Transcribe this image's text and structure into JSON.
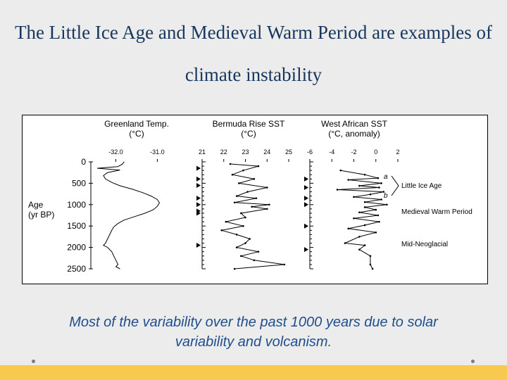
{
  "slide": {
    "title": "The Little Ice Age and Medieval Warm Period are examples of climate instability",
    "caption": "Most of the variability over the past 1000 years due to solar variability and volcanism."
  },
  "chart_data": {
    "type": "line",
    "y_axis": {
      "label_line1": "Age",
      "label_line2": "(yr BP)",
      "ticks": [
        0,
        500,
        1000,
        1500,
        2000,
        2500
      ],
      "range": [
        0,
        2500
      ]
    },
    "panels": [
      {
        "id": "greenland",
        "title_line1": "Greenland Temp.",
        "title_line2": "(°C)",
        "xlim": [
          -32.4,
          -30.6
        ],
        "ticks": [
          -32.0,
          -31.0
        ],
        "tick_labels": [
          "-32.0",
          "-31.0"
        ],
        "points": [
          [
            -31.8,
            0
          ],
          [
            -31.85,
            60
          ],
          [
            -31.95,
            110
          ],
          [
            -32.45,
            150
          ],
          [
            -31.9,
            190
          ],
          [
            -32.2,
            250
          ],
          [
            -32.3,
            320
          ],
          [
            -32.25,
            400
          ],
          [
            -32.1,
            480
          ],
          [
            -31.9,
            560
          ],
          [
            -31.6,
            640
          ],
          [
            -31.35,
            720
          ],
          [
            -31.15,
            800
          ],
          [
            -31.0,
            880
          ],
          [
            -30.95,
            960
          ],
          [
            -31.0,
            1040
          ],
          [
            -31.1,
            1120
          ],
          [
            -31.3,
            1200
          ],
          [
            -31.55,
            1280
          ],
          [
            -31.8,
            1360
          ],
          [
            -31.95,
            1440
          ],
          [
            -32.05,
            1520
          ],
          [
            -32.1,
            1600
          ],
          [
            -32.15,
            1700
          ],
          [
            -32.2,
            1800
          ],
          [
            -32.25,
            1900
          ],
          [
            -32.3,
            1950
          ],
          [
            -32.2,
            2000
          ],
          [
            -32.1,
            2100
          ],
          [
            -32.05,
            2200
          ],
          [
            -32.0,
            2300
          ],
          [
            -31.95,
            2400
          ],
          [
            -32.0,
            2450
          ],
          [
            -31.9,
            2500
          ]
        ]
      },
      {
        "id": "bermuda",
        "title_line1": "Bermuda Rise SST",
        "title_line2": "(°C)",
        "xlim": [
          21,
          25
        ],
        "ticks": [
          21,
          22,
          23,
          24,
          25
        ],
        "tick_labels": [
          "21",
          "22",
          "23",
          "24",
          "25"
        ],
        "markers": [
          150,
          400,
          550,
          850,
          1000,
          1150,
          1200,
          1950
        ],
        "points": [
          [
            22.3,
            50
          ],
          [
            23.6,
            100
          ],
          [
            22.9,
            200
          ],
          [
            22.4,
            300
          ],
          [
            23.4,
            400
          ],
          [
            22.7,
            500
          ],
          [
            24.0,
            600
          ],
          [
            23.1,
            700
          ],
          [
            22.6,
            800
          ],
          [
            23.5,
            850
          ],
          [
            22.5,
            950
          ],
          [
            24.1,
            1000
          ],
          [
            23.3,
            1050
          ],
          [
            24.0,
            1100
          ],
          [
            22.8,
            1200
          ],
          [
            23.0,
            1300
          ],
          [
            22.1,
            1400
          ],
          [
            22.9,
            1500
          ],
          [
            21.9,
            1600
          ],
          [
            22.6,
            1700
          ],
          [
            23.2,
            1800
          ],
          [
            23.0,
            1900
          ],
          [
            22.6,
            2000
          ],
          [
            23.6,
            2100
          ],
          [
            22.8,
            2200
          ],
          [
            23.4,
            2300
          ],
          [
            24.8,
            2400
          ],
          [
            22.5,
            2500
          ]
        ]
      },
      {
        "id": "west-african",
        "title_line1": "West African SST",
        "title_line2": "(°C, anomaly)",
        "xlim": [
          -6,
          2
        ],
        "ticks": [
          -6,
          -4,
          -2,
          0,
          2
        ],
        "tick_labels": [
          "-6",
          "-4",
          "-2",
          "0",
          "2"
        ],
        "markers": [
          400,
          600,
          850,
          1000,
          1500,
          2050
        ],
        "curve_labels": [
          "a",
          "b"
        ],
        "points": [
          [
            -3.2,
            200
          ],
          [
            -1.0,
            300
          ],
          [
            0.2,
            380
          ],
          [
            -2.5,
            420
          ],
          [
            0.5,
            500
          ],
          [
            -1.5,
            560
          ],
          [
            0.3,
            600
          ],
          [
            -3.5,
            650
          ],
          [
            0.7,
            700
          ],
          [
            -0.5,
            760
          ],
          [
            -2.0,
            820
          ],
          [
            0.5,
            880
          ],
          [
            -1.0,
            940
          ],
          [
            1.0,
            1000
          ],
          [
            -1.0,
            1060
          ],
          [
            0.0,
            1120
          ],
          [
            -1.5,
            1180
          ],
          [
            0.2,
            1250
          ],
          [
            -2.0,
            1320
          ],
          [
            0.3,
            1400
          ],
          [
            -1.0,
            1480
          ],
          [
            -2.5,
            1560
          ],
          [
            0.0,
            1650
          ],
          [
            -1.5,
            1750
          ],
          [
            -2.8,
            1900
          ],
          [
            -1.0,
            1950
          ],
          [
            -1.5,
            2050
          ],
          [
            -0.5,
            2200
          ],
          [
            -0.5,
            2400
          ],
          [
            -0.3,
            2500
          ]
        ]
      }
    ],
    "annotations": [
      {
        "text": "Little Ice Age",
        "age": 600
      },
      {
        "text": "Medieval Warm Period",
        "age": 1200
      },
      {
        "text": "Mid-Neoglacial",
        "age": 1950
      }
    ]
  }
}
